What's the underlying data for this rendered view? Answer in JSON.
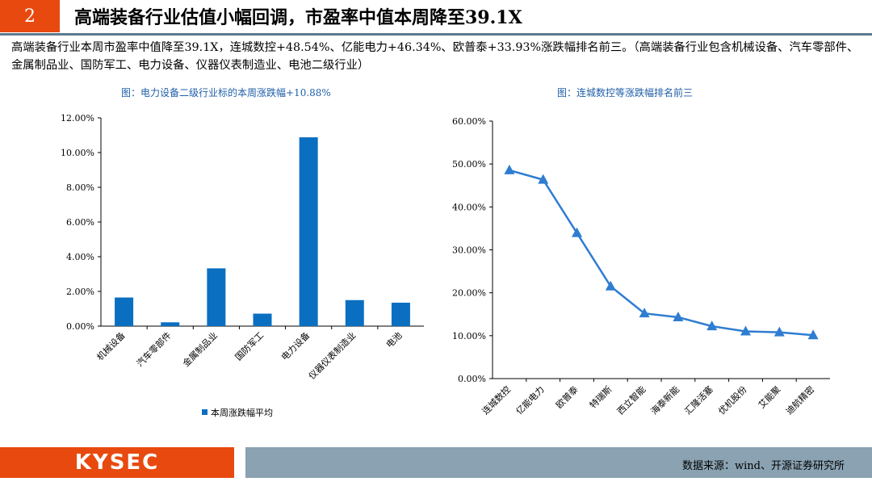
{
  "slide": {
    "number": "2",
    "title": "高端装备行业估值小幅回调，市盈率中值本周降至39.1X"
  },
  "summary": "高端装备行业本周市盈率中值降至39.1X，连城数控+48.54%、亿能电力+46.34%、欧普泰+33.93%涨跌幅排名前三。（高端装备行业包含机械设备、汽车零部件、金属制品业、国防军工、电力设备、仪器仪表制造业、电池二级行业）",
  "footer": {
    "logo": "KYSEC",
    "source": "数据来源：wind、开源证券研究所"
  },
  "colors": {
    "accent": "#e8490f",
    "bar": "#0b6fc1",
    "line": "#2f7dd1",
    "rule": "#5c7b8e"
  },
  "chart_data": [
    {
      "type": "bar",
      "title": "图：电力设备二级行业标的本周涨跌幅+10.88%",
      "categories": [
        "机械设备",
        "汽车零部件",
        "金属制品业",
        "国防军工",
        "电力设备",
        "仪器仪表制造业",
        "电池"
      ],
      "series": [
        {
          "name": "本周涨跌幅平均",
          "values": [
            1.65,
            0.22,
            3.33,
            0.72,
            10.88,
            1.5,
            1.35
          ]
        }
      ],
      "ylim": [
        0,
        12
      ],
      "yticks": [
        "0.00%",
        "2.00%",
        "4.00%",
        "6.00%",
        "8.00%",
        "10.00%",
        "12.00%"
      ],
      "legend": "bottom",
      "grid": false
    },
    {
      "type": "line",
      "title": "图：连城数控等涨跌幅排名前三",
      "categories": [
        "连城数控",
        "亿能电力",
        "欧普泰",
        "特瑞斯",
        "西立智能",
        "海泰新能",
        "汇隆活塞",
        "优机股份",
        "艾能聚",
        "迪航精密"
      ],
      "series": [
        {
          "values": [
            48.54,
            46.34,
            33.93,
            21.5,
            15.2,
            14.3,
            12.2,
            11.0,
            10.8,
            10.1
          ]
        }
      ],
      "ylim": [
        0,
        60
      ],
      "yticks": [
        "0.00%",
        "10.00%",
        "20.00%",
        "30.00%",
        "40.00%",
        "50.00%",
        "60.00%"
      ],
      "marker": "triangle",
      "grid": false
    }
  ]
}
